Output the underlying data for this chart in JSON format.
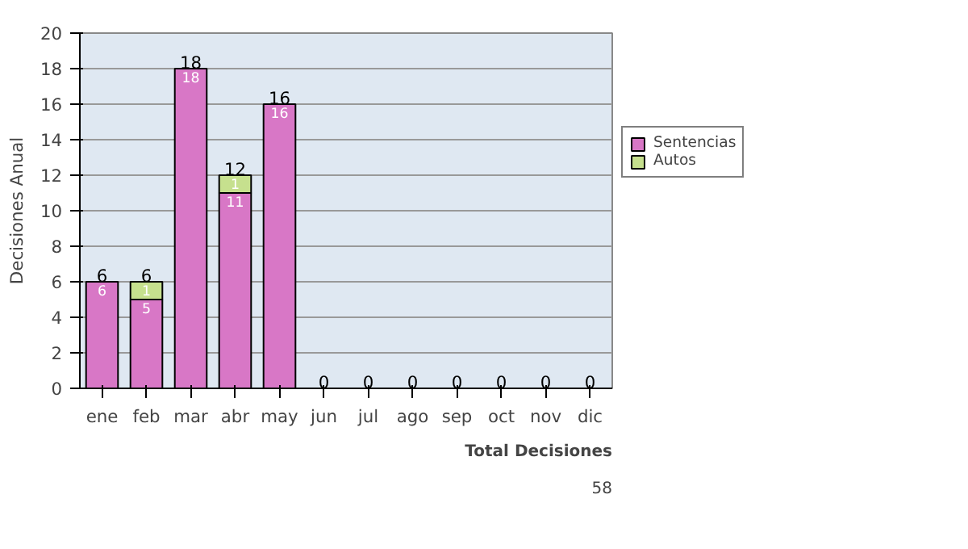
{
  "chart_data": {
    "type": "bar",
    "stacked": true,
    "ylabel": "Decisiones Anual",
    "categories": [
      "ene",
      "feb",
      "mar",
      "abr",
      "may",
      "jun",
      "jul",
      "ago",
      "sep",
      "oct",
      "nov",
      "dic"
    ],
    "series": [
      {
        "name": "Sentencias",
        "color": "#d877c6",
        "values": [
          6,
          5,
          18,
          11,
          16,
          0,
          0,
          0,
          0,
          0,
          0,
          0
        ],
        "value_labels": [
          "6",
          "5",
          "18",
          "11",
          "16",
          null,
          null,
          null,
          null,
          null,
          null,
          null
        ]
      },
      {
        "name": "Autos",
        "color": "#c6e08e",
        "values": [
          0,
          1,
          0,
          1,
          0,
          0,
          0,
          0,
          0,
          0,
          0,
          0
        ],
        "value_labels": [
          null,
          "1",
          null,
          "1",
          null,
          null,
          null,
          null,
          null,
          null,
          null,
          null
        ]
      }
    ],
    "totals": [
      "6",
      "6",
      "18",
      "12",
      "16",
      "0",
      "0",
      "0",
      "0",
      "0",
      "0",
      "0"
    ],
    "ylim": [
      0,
      20
    ],
    "yticks": [
      0,
      2,
      4,
      6,
      8,
      10,
      12,
      14,
      16,
      18,
      20
    ],
    "grid": "y",
    "legend": "right",
    "annotations": [
      "Total Decisiones",
      "58"
    ]
  }
}
